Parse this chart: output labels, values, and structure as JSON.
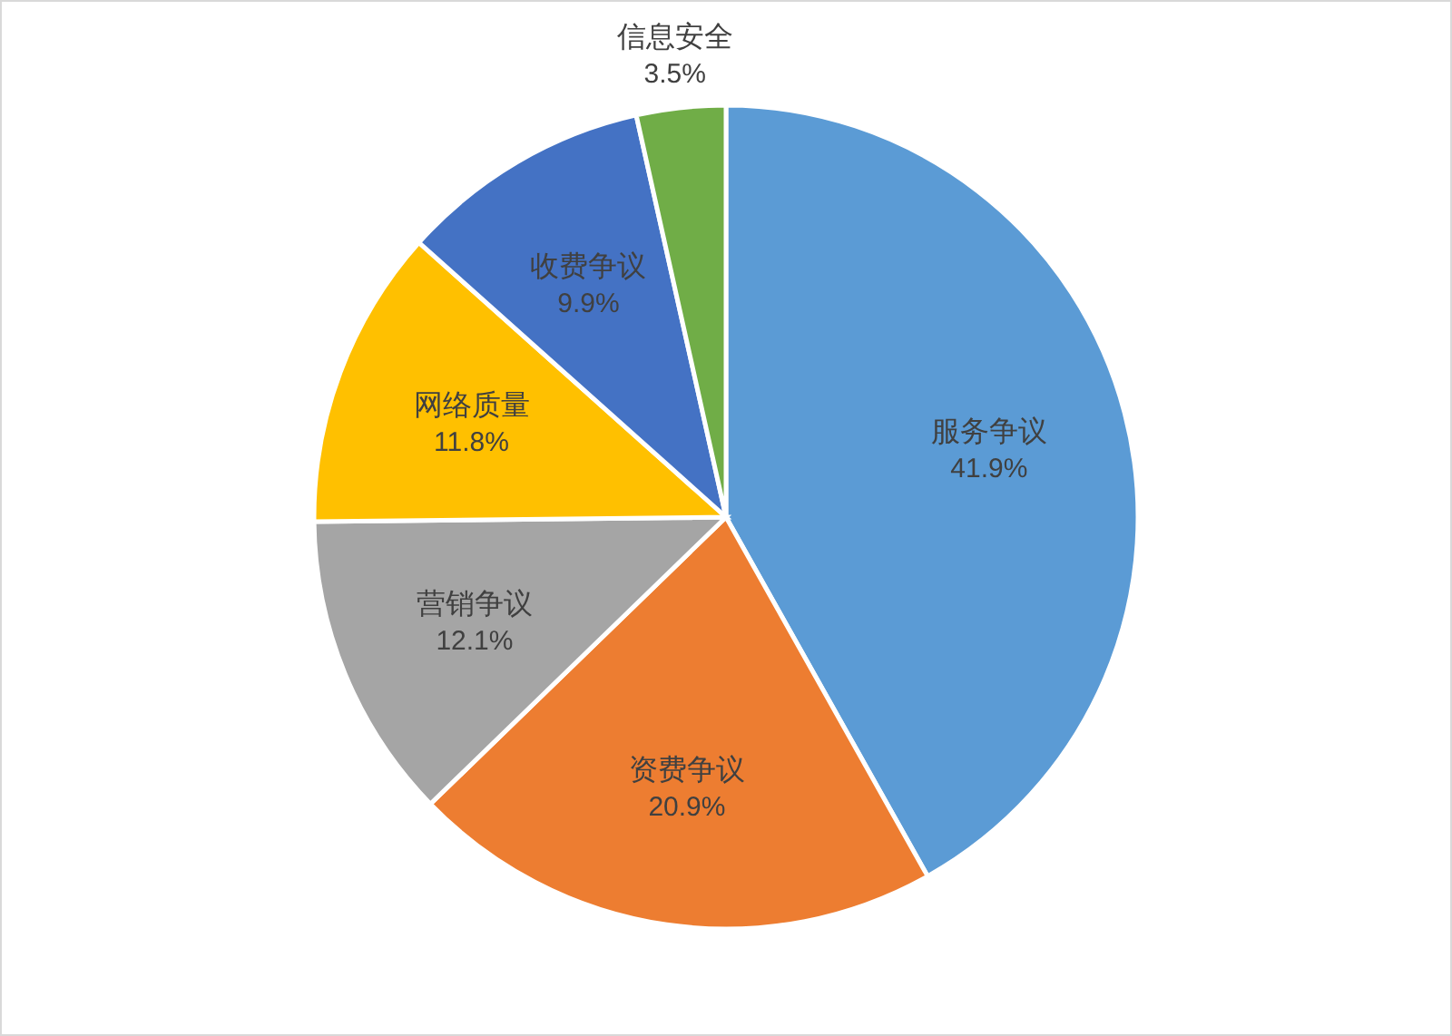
{
  "chart_data": {
    "type": "pie",
    "categories": [
      "服务争议",
      "资费争议",
      "营销争议",
      "网络质量",
      "收费争议",
      "信息安全"
    ],
    "values": [
      41.9,
      20.9,
      12.1,
      11.8,
      9.9,
      3.5
    ],
    "value_labels": [
      "41.9%",
      "20.9%",
      "12.1%",
      "11.8%",
      "9.9%",
      "3.5%"
    ],
    "colors": [
      "#5b9bd5",
      "#ed7d31",
      "#a5a5a5",
      "#ffc000",
      "#4472c4",
      "#70ad47"
    ]
  }
}
